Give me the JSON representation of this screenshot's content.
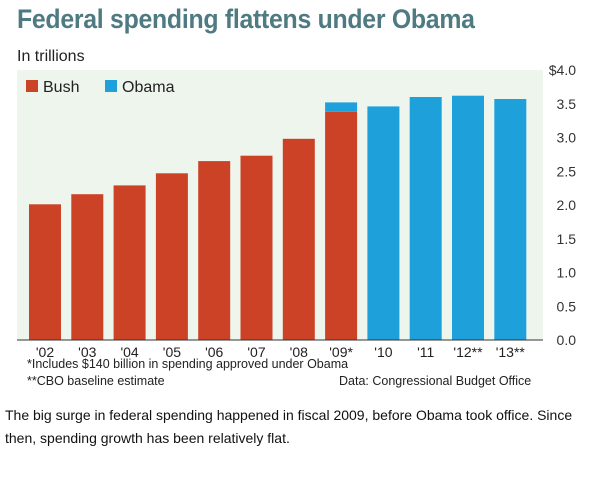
{
  "title": "Federal spending flattens under Obama",
  "subtitle": "In trillions",
  "footnotes": {
    "note1": "*Includes $140 billion in spending approved under Obama",
    "note2": "**CBO baseline estimate",
    "source": "Data: Congressional Budget Office"
  },
  "caption": "The big surge in federal spending happened in fiscal 2009, before Obama took office. Since then, spending growth has been relatively flat.",
  "colors": {
    "bush": "#cc4226",
    "obama": "#1ea1db",
    "plot_bg": "#eef5ed",
    "title": "#4e7a82"
  },
  "chart_data": {
    "type": "bar",
    "categories": [
      "'02",
      "'03",
      "'04",
      "'05",
      "'06",
      "'07",
      "'08",
      "'09*",
      "'10",
      "'11",
      "'12**",
      "'13**"
    ],
    "series": [
      {
        "name": "Bush",
        "values": [
          2.01,
          2.16,
          2.29,
          2.47,
          2.65,
          2.73,
          2.98,
          3.38,
          0,
          0,
          0,
          0
        ]
      },
      {
        "name": "Obama",
        "values": [
          0,
          0,
          0,
          0,
          0,
          0,
          0,
          0.14,
          3.46,
          3.6,
          3.62,
          3.57
        ]
      }
    ],
    "stacked": true,
    "ylim": [
      0,
      4.0
    ],
    "yticks": [
      "0.0",
      "0.5",
      "1.0",
      "1.5",
      "2.0",
      "2.5",
      "3.0",
      "3.5",
      "$4.0"
    ],
    "ytick_values": [
      0,
      0.5,
      1.0,
      1.5,
      2.0,
      2.5,
      3.0,
      3.5,
      4.0
    ],
    "legend": {
      "position": "top-left",
      "entries": [
        "Bush",
        "Obama"
      ]
    },
    "grid": false,
    "xlabel": "",
    "ylabel": ""
  }
}
